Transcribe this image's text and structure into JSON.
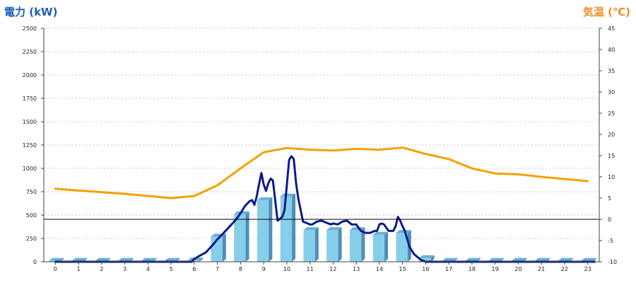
{
  "chart_data": {
    "type": "bar",
    "title": "",
    "y_left": {
      "label": "電力 (kW)",
      "ylim": [
        0,
        2500
      ],
      "ticks": [
        0,
        250,
        500,
        750,
        1000,
        1250,
        1500,
        1750,
        2000,
        2250,
        2500
      ]
    },
    "y_right": {
      "label": "気温 (℃)",
      "ylim": [
        -10,
        45
      ],
      "ticks": [
        -10,
        -5,
        0,
        5,
        10,
        15,
        20,
        25,
        30,
        35,
        40,
        45
      ]
    },
    "categories": [
      "0",
      "1",
      "2",
      "3",
      "4",
      "5",
      "6",
      "7",
      "8",
      "9",
      "10",
      "11",
      "12",
      "13",
      "14",
      "15",
      "16",
      "17",
      "18",
      "19",
      "20",
      "21",
      "22",
      "23"
    ],
    "grid": true,
    "zero_line_right_axis": 0,
    "series": [
      {
        "kind": "bar",
        "color": "#87ceeb",
        "values": [
          10,
          10,
          10,
          10,
          10,
          10,
          15,
          270,
          510,
          660,
          700,
          340,
          340,
          340,
          290,
          310,
          40,
          10,
          10,
          10,
          10,
          10,
          10,
          10
        ]
      },
      {
        "kind": "line",
        "axis": "right",
        "color": "#f5a000",
        "x": [
          0,
          1,
          2,
          3,
          4,
          5,
          6,
          7,
          8,
          9,
          10,
          11,
          12,
          13,
          14,
          15,
          16,
          17,
          18,
          19,
          20,
          21,
          22,
          23
        ],
        "values": [
          7.2,
          6.8,
          6.4,
          6.0,
          5.5,
          5.0,
          5.5,
          8.0,
          12.0,
          15.8,
          16.8,
          16.4,
          16.2,
          16.6,
          16.4,
          16.9,
          15.4,
          14.2,
          12.0,
          10.8,
          10.6,
          10.0,
          9.5,
          9.0
        ]
      },
      {
        "kind": "line",
        "axis": "left",
        "color": "#0c1a8c",
        "x": [
          0,
          5.5,
          5.9,
          6.0,
          6.2,
          6.5,
          6.8,
          7.0,
          7.2,
          7.5,
          7.8,
          8.0,
          8.2,
          8.4,
          8.5,
          8.6,
          8.7,
          8.8,
          8.9,
          9.0,
          9.1,
          9.2,
          9.3,
          9.4,
          9.6,
          9.8,
          9.9,
          10.0,
          10.1,
          10.2,
          10.3,
          10.4,
          10.5,
          10.7,
          10.9,
          11.0,
          11.1,
          11.3,
          11.5,
          11.7,
          11.9,
          12.0,
          12.2,
          12.4,
          12.6,
          12.8,
          13.0,
          13.2,
          13.4,
          13.6,
          13.8,
          13.9,
          14.0,
          14.1,
          14.2,
          14.4,
          14.6,
          14.7,
          14.8,
          14.9,
          15.0,
          15.1,
          15.3,
          15.5,
          15.8,
          16.0,
          16.5,
          23.3
        ],
        "values": [
          0,
          0,
          0,
          30,
          60,
          100,
          180,
          240,
          290,
          370,
          450,
          520,
          600,
          650,
          660,
          610,
          700,
          830,
          950,
          830,
          760,
          840,
          890,
          870,
          440,
          480,
          550,
          820,
          1090,
          1130,
          1100,
          840,
          670,
          430,
          410,
          400,
          400,
          430,
          440,
          420,
          400,
          410,
          400,
          430,
          440,
          400,
          400,
          330,
          310,
          310,
          330,
          330,
          400,
          410,
          400,
          330,
          330,
          380,
          480,
          440,
          380,
          330,
          160,
          80,
          20,
          0,
          0,
          0
        ]
      }
    ]
  }
}
